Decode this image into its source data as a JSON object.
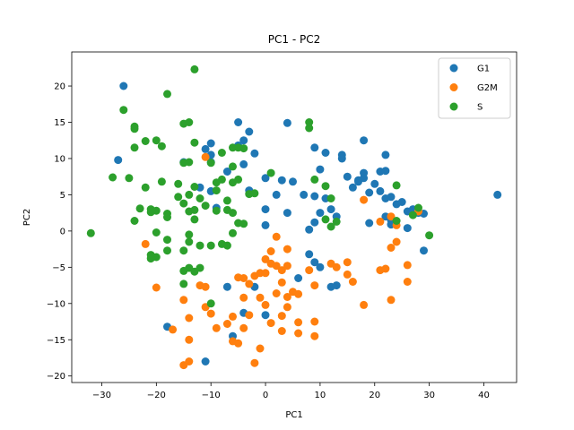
{
  "chart_data": {
    "type": "scatter",
    "title": "PC1 - PC2",
    "xlabel": "PC1",
    "ylabel": "PC2",
    "xlim": [
      -35.5,
      46
    ],
    "ylim": [
      -20.9,
      24.7
    ],
    "xticks": [
      -30,
      -20,
      -10,
      0,
      10,
      20,
      30,
      40
    ],
    "yticks": [
      -20,
      -15,
      -10,
      -5,
      0,
      5,
      10,
      15,
      20
    ],
    "grid": false,
    "legend_position": "top-right",
    "series": [
      {
        "name": "G1",
        "color": "#1f77b4",
        "points": [
          [
            -26,
            20
          ],
          [
            -27,
            9.8
          ],
          [
            -15,
            9.5
          ],
          [
            -11,
            11.3
          ],
          [
            -10,
            12.1
          ],
          [
            -10,
            10.5
          ],
          [
            -10,
            9.5
          ],
          [
            -12,
            6
          ],
          [
            -10,
            5.5
          ],
          [
            -9,
            3.2
          ],
          [
            -7,
            8.2
          ],
          [
            -5,
            11.8
          ],
          [
            -4,
            12.5
          ],
          [
            -5,
            15
          ],
          [
            -3,
            13.7
          ],
          [
            -2,
            10.7
          ],
          [
            -4,
            9.2
          ],
          [
            -3,
            5.6
          ],
          [
            0,
            7.3
          ],
          [
            3,
            7
          ],
          [
            5,
            6.8
          ],
          [
            4,
            14.9
          ],
          [
            2,
            5
          ],
          [
            4,
            2.5
          ],
          [
            0,
            3
          ],
          [
            0,
            0.8
          ],
          [
            7,
            5
          ],
          [
            9,
            4.8
          ],
          [
            10,
            8.5
          ],
          [
            9,
            11.5
          ],
          [
            11,
            10.8
          ],
          [
            14,
            10.5
          ],
          [
            14,
            10
          ],
          [
            15,
            7.5
          ],
          [
            11,
            4.5
          ],
          [
            12,
            3
          ],
          [
            9,
            1.2
          ],
          [
            8,
            0.2
          ],
          [
            10,
            2.5
          ],
          [
            13,
            2
          ],
          [
            16,
            6
          ],
          [
            17,
            7
          ],
          [
            18,
            7.3
          ],
          [
            17,
            6.8
          ],
          [
            18,
            12.5
          ],
          [
            18,
            8
          ],
          [
            21,
            8.2
          ],
          [
            22,
            8.3
          ],
          [
            22,
            10.5
          ],
          [
            19,
            5.3
          ],
          [
            20,
            6.5
          ],
          [
            21,
            5.5
          ],
          [
            22,
            4.5
          ],
          [
            23,
            4.7
          ],
          [
            24,
            3.7
          ],
          [
            25,
            4
          ],
          [
            26,
            2.7
          ],
          [
            28,
            2.5
          ],
          [
            29,
            2.4
          ],
          [
            27,
            3
          ],
          [
            22,
            2
          ],
          [
            23,
            1.5
          ],
          [
            19,
            1.1
          ],
          [
            23,
            0.9
          ],
          [
            26,
            0.4
          ],
          [
            29,
            -2.7
          ],
          [
            42.5,
            5
          ],
          [
            8,
            -3.2
          ],
          [
            9,
            -4.3
          ],
          [
            10,
            -5
          ],
          [
            12,
            -7.7
          ],
          [
            13,
            -7.5
          ],
          [
            6,
            -6.5
          ],
          [
            -7,
            -7.7
          ],
          [
            -2,
            -7.7
          ],
          [
            -4,
            -11.3
          ],
          [
            -6,
            -14.5
          ],
          [
            -18,
            -13.2
          ],
          [
            -11,
            -18
          ],
          [
            0,
            -11.6
          ]
        ]
      },
      {
        "name": "G2M",
        "color": "#ff7f0e",
        "points": [
          [
            -11,
            10.2
          ],
          [
            -22,
            -1.8
          ],
          [
            -20,
            -7.8
          ],
          [
            -15,
            -9.5
          ],
          [
            -17,
            -13.6
          ],
          [
            -15,
            -18.5
          ],
          [
            -14,
            -18
          ],
          [
            -14,
            -12
          ],
          [
            -14,
            -15
          ],
          [
            -12,
            -7.5
          ],
          [
            -11,
            -7.7
          ],
          [
            -10,
            -11.4
          ],
          [
            -11,
            -10.5
          ],
          [
            -9,
            -13.4
          ],
          [
            -7,
            -12.8
          ],
          [
            -6,
            -11.8
          ],
          [
            -6,
            -15.2
          ],
          [
            -5,
            -15.5
          ],
          [
            -4,
            -13.4
          ],
          [
            -3,
            -11.6
          ],
          [
            -5,
            -6.4
          ],
          [
            -4,
            -6.5
          ],
          [
            -3,
            -7.3
          ],
          [
            -4,
            -9.2
          ],
          [
            -2,
            -6.2
          ],
          [
            -1,
            -5.8
          ],
          [
            0,
            -3.9
          ],
          [
            0,
            -5.8
          ],
          [
            1,
            -4.5
          ],
          [
            -1,
            -9.2
          ],
          [
            0,
            -10.2
          ],
          [
            1,
            -12.7
          ],
          [
            2,
            -8.6
          ],
          [
            2,
            -4.8
          ],
          [
            3,
            -5.4
          ],
          [
            4,
            -4.8
          ],
          [
            3,
            -7.1
          ],
          [
            4,
            -9.1
          ],
          [
            3,
            -11.7
          ],
          [
            3,
            -13.8
          ],
          [
            4,
            -10.5
          ],
          [
            5,
            -8.4
          ],
          [
            6,
            -12.6
          ],
          [
            6,
            -14.1
          ],
          [
            8,
            -5.4
          ],
          [
            9,
            -7.5
          ],
          [
            9,
            -12.5
          ],
          [
            9,
            -14.5
          ],
          [
            6,
            -8.7
          ],
          [
            4,
            -2.5
          ],
          [
            1,
            -2.8
          ],
          [
            2,
            -0.8
          ],
          [
            -1,
            -16.2
          ],
          [
            -2,
            -18.2
          ],
          [
            12,
            -4.5
          ],
          [
            13,
            -5
          ],
          [
            15,
            -4.3
          ],
          [
            15,
            -6
          ],
          [
            16,
            -7
          ],
          [
            18,
            -10.2
          ],
          [
            21,
            -5.4
          ],
          [
            22,
            -5.2
          ],
          [
            23,
            -2.3
          ],
          [
            24,
            -1.5
          ],
          [
            24,
            0.8
          ],
          [
            23,
            2
          ],
          [
            23,
            -9.5
          ],
          [
            26,
            -4.7
          ],
          [
            26,
            -7
          ],
          [
            28,
            2.7
          ],
          [
            21,
            1.3
          ],
          [
            18,
            4.3
          ]
        ]
      },
      {
        "name": "S",
        "color": "#2ca02c",
        "points": [
          [
            -13,
            22.3
          ],
          [
            -18,
            18.9
          ],
          [
            -26,
            16.7
          ],
          [
            -24,
            14.4
          ],
          [
            -24,
            14.1
          ],
          [
            -22,
            12.4
          ],
          [
            -20,
            12.5
          ],
          [
            -24,
            11.5
          ],
          [
            -19,
            11.7
          ],
          [
            -15,
            14.8
          ],
          [
            -14,
            15
          ],
          [
            -13,
            12.2
          ],
          [
            -15,
            9.4
          ],
          [
            -14,
            9.5
          ],
          [
            -10,
            9.4
          ],
          [
            -8,
            10.8
          ],
          [
            -6,
            11.5
          ],
          [
            -5,
            11.5
          ],
          [
            -4,
            11.4
          ],
          [
            -6,
            8.9
          ],
          [
            -8,
            7.1
          ],
          [
            -9,
            6.7
          ],
          [
            -9,
            5.6
          ],
          [
            -12,
            4.5
          ],
          [
            -14,
            5
          ],
          [
            -13,
            6.1
          ],
          [
            -16,
            6.5
          ],
          [
            -19,
            6.8
          ],
          [
            -22,
            6
          ],
          [
            -25,
            7.3
          ],
          [
            -28,
            7.4
          ],
          [
            -23,
            3.1
          ],
          [
            -21,
            3
          ],
          [
            -20,
            2.8
          ],
          [
            -21,
            2.6
          ],
          [
            -18,
            2.4
          ],
          [
            -18,
            1.9
          ],
          [
            -16,
            4.7
          ],
          [
            -15,
            3.8
          ],
          [
            -14,
            2.7
          ],
          [
            -13,
            2.9
          ],
          [
            -13,
            1.6
          ],
          [
            -11,
            3.5
          ],
          [
            -9,
            2.8
          ],
          [
            -7,
            2.9
          ],
          [
            -6,
            2.5
          ],
          [
            -7,
            4.2
          ],
          [
            -6,
            6.7
          ],
          [
            -5,
            7.1
          ],
          [
            -3,
            5.1
          ],
          [
            -2,
            5.2
          ],
          [
            -4,
            1
          ],
          [
            -5,
            1.1
          ],
          [
            -6,
            -0.3
          ],
          [
            -8,
            -1.8
          ],
          [
            -10,
            -2
          ],
          [
            -12,
            -2
          ],
          [
            -14,
            -0.5
          ],
          [
            -14,
            -1.5
          ],
          [
            -15,
            -2.7
          ],
          [
            -18,
            -1.2
          ],
          [
            -18,
            -2.7
          ],
          [
            -20,
            -3.6
          ],
          [
            -21,
            -3.3
          ],
          [
            -21,
            -3.8
          ],
          [
            -24,
            1.4
          ],
          [
            -20,
            -0.2
          ],
          [
            -32,
            -0.3
          ],
          [
            -15,
            -5.5
          ],
          [
            -14,
            -5.1
          ],
          [
            -12,
            -5.1
          ],
          [
            -13,
            -5.6
          ],
          [
            -15,
            -7.3
          ],
          [
            -7,
            -2
          ],
          [
            -10,
            -10
          ],
          [
            1,
            8
          ],
          [
            8,
            15
          ],
          [
            8,
            14.2
          ],
          [
            9,
            7.1
          ],
          [
            11,
            6.2
          ],
          [
            12,
            4.5
          ],
          [
            11,
            1.6
          ],
          [
            13,
            1.3
          ],
          [
            12,
            0.6
          ],
          [
            24,
            6.3
          ],
          [
            24,
            1.4
          ],
          [
            27,
            2.2
          ],
          [
            28,
            3.2
          ],
          [
            30,
            -0.6
          ]
        ]
      }
    ]
  }
}
